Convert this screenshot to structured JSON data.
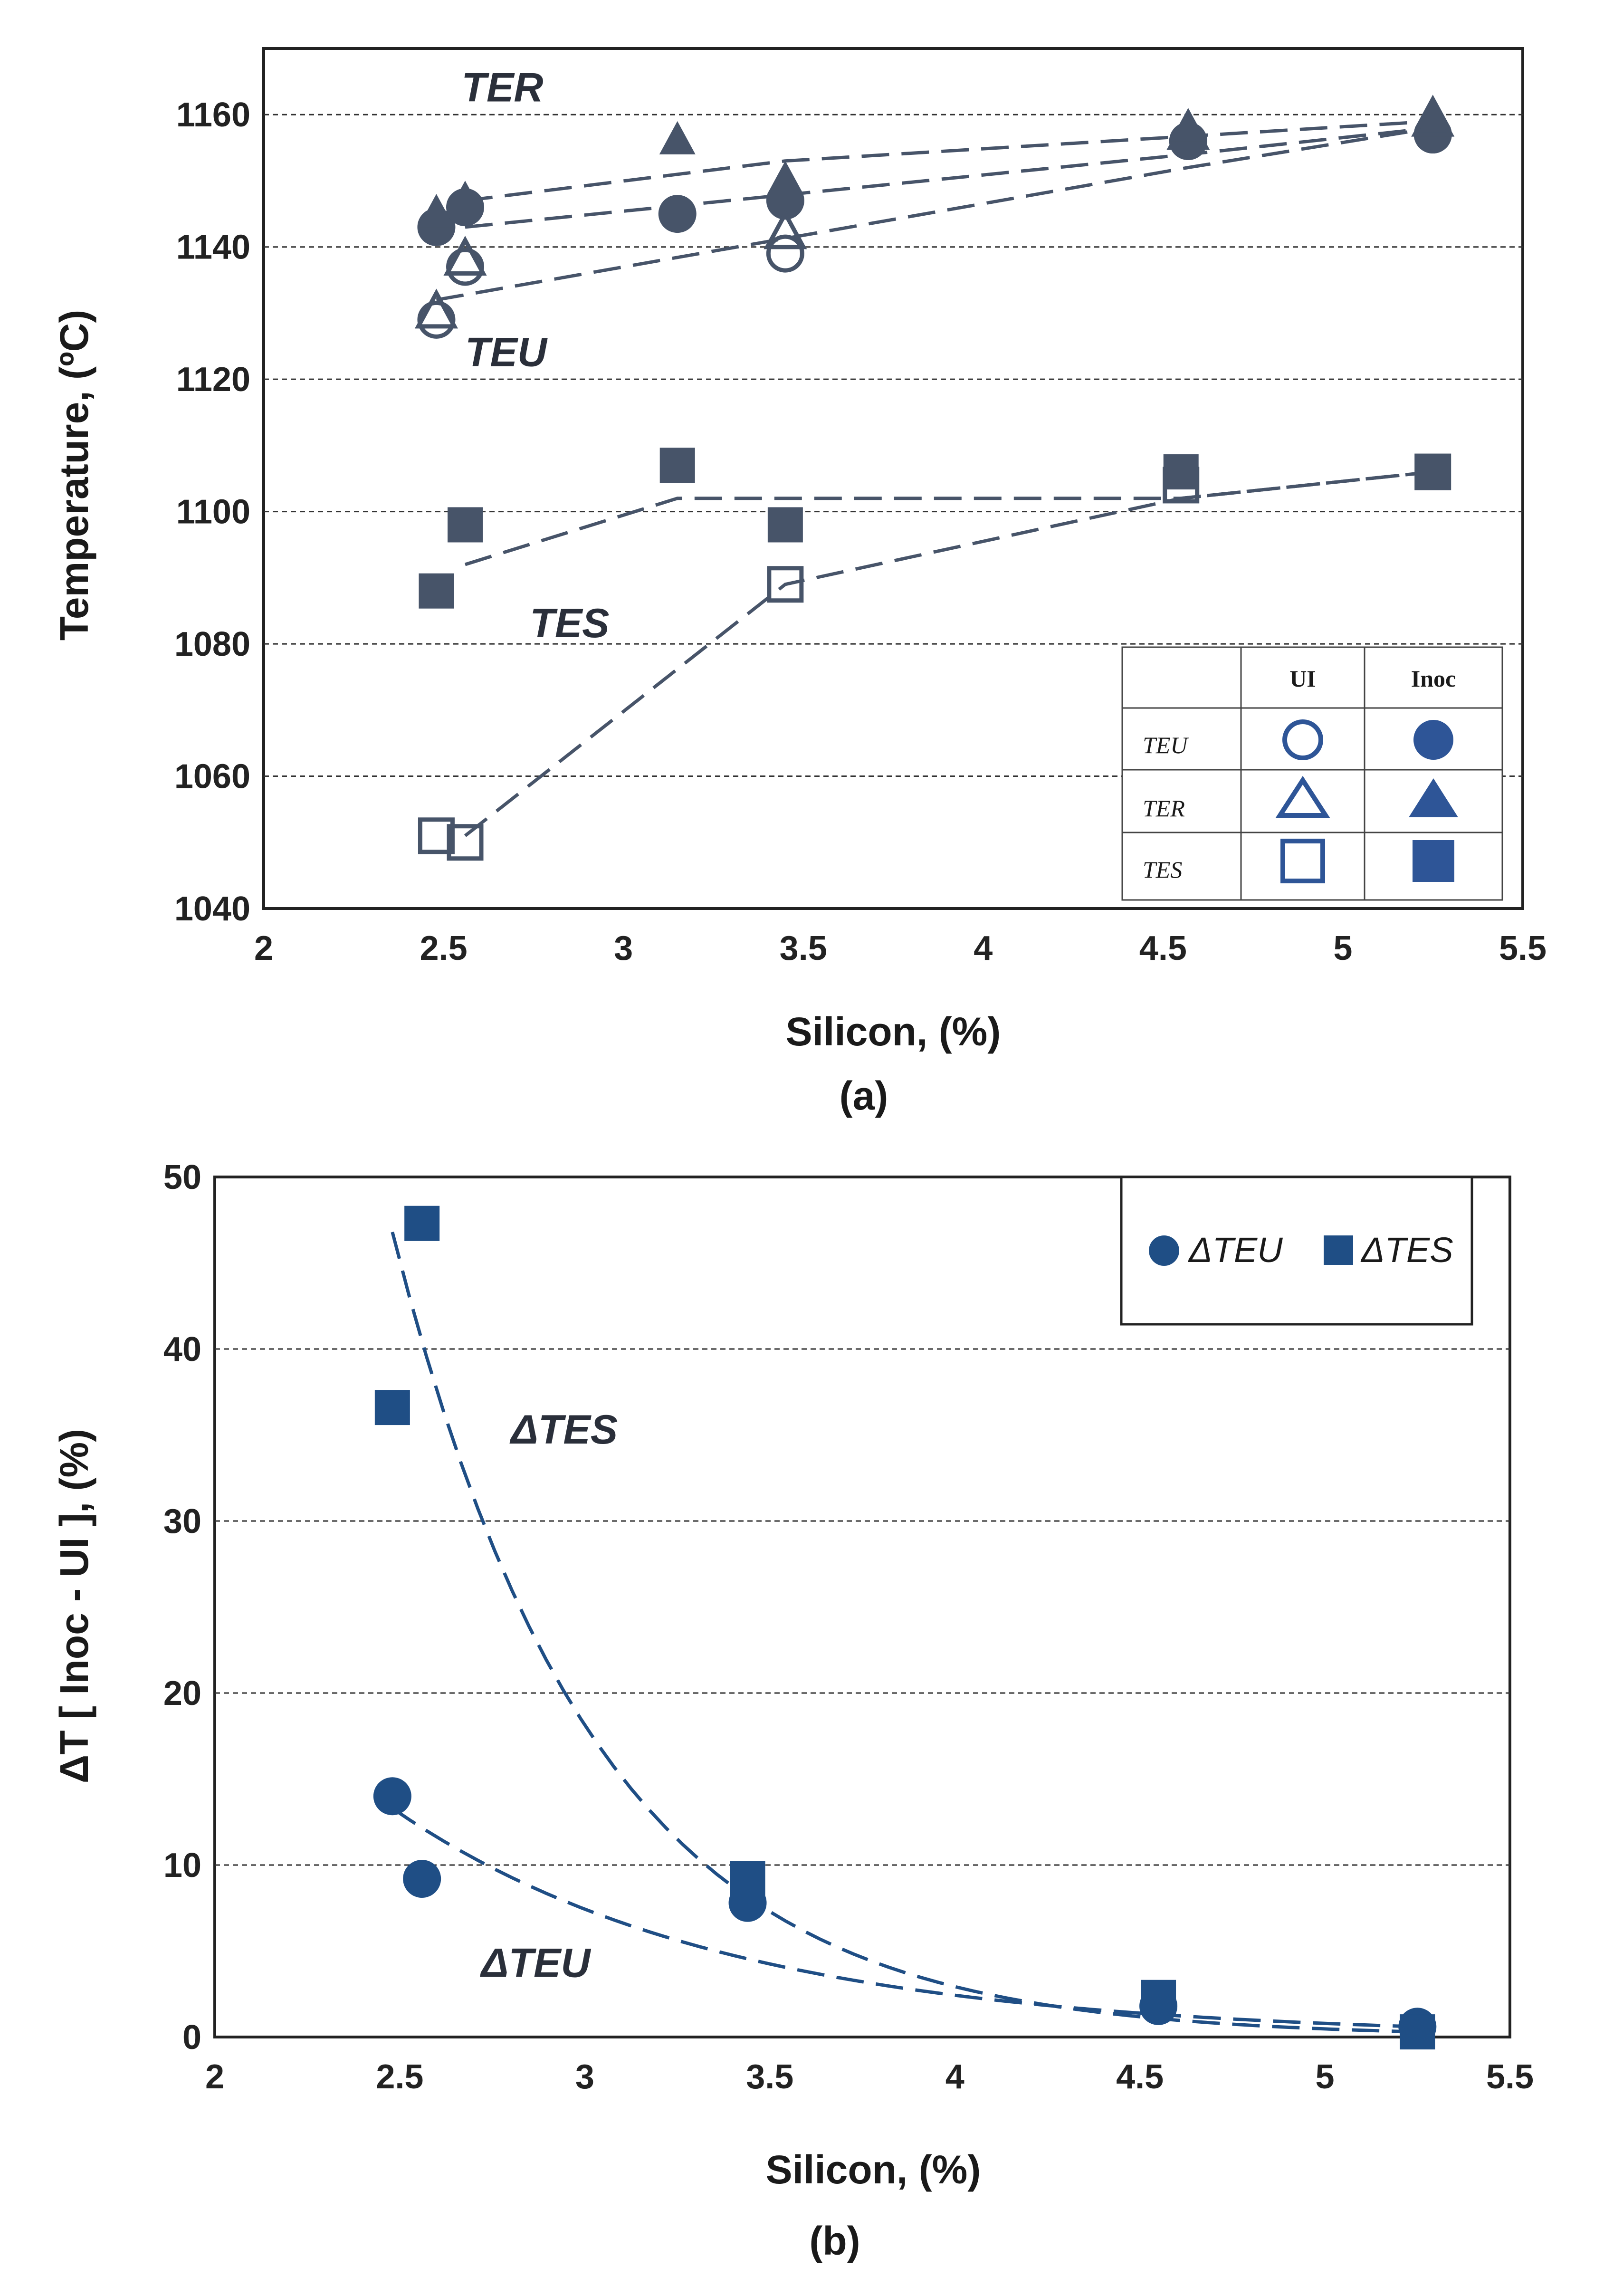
{
  "chart_data": [
    {
      "id": "a",
      "type": "scatter",
      "caption": "(a)",
      "xlabel": "Silicon, (%)",
      "ylabel": "Temperature, (ºC)",
      "xlim": [
        2,
        5.5
      ],
      "ylim": [
        1040,
        1170
      ],
      "x_ticks": [
        "2",
        "2.5",
        "3",
        "3.5",
        "4",
        "4.5",
        "5",
        "5.5"
      ],
      "y_ticks": [
        "1040",
        "1060",
        "1080",
        "1100",
        "1120",
        "1140",
        "1160"
      ],
      "grid": "horizontal dashed",
      "series": [
        {
          "name": "TEU UI",
          "marker": "circle-open",
          "x": [
            2.48,
            2.56,
            3.45,
            4.57,
            5.25
          ],
          "y": [
            1129,
            1137,
            1139,
            1156,
            1157
          ]
        },
        {
          "name": "TEU Inoc",
          "marker": "circle-filled",
          "x": [
            2.48,
            2.56,
            3.15,
            3.45,
            4.57,
            5.25
          ],
          "y": [
            1143,
            1146,
            1145,
            1147,
            1156,
            1157
          ]
        },
        {
          "name": "TER UI",
          "marker": "triangle-open",
          "x": [
            2.48,
            2.56,
            3.45,
            4.57,
            5.25
          ],
          "y": [
            1130,
            1138,
            1142,
            1157,
            1159
          ]
        },
        {
          "name": "TER Inoc",
          "marker": "triangle-filled",
          "x": [
            2.48,
            2.56,
            3.15,
            3.45,
            4.57,
            5.25
          ],
          "y": [
            1145,
            1147,
            1156,
            1150,
            1158,
            1160
          ]
        },
        {
          "name": "TES UI",
          "marker": "square-open",
          "x": [
            2.48,
            2.56,
            3.45,
            4.55,
            5.25
          ],
          "y": [
            1051,
            1050,
            1089,
            1104,
            1106
          ]
        },
        {
          "name": "TES Inoc",
          "marker": "square-filled",
          "x": [
            2.48,
            2.56,
            3.15,
            3.45,
            4.55,
            5.25
          ],
          "y": [
            1088,
            1098,
            1107,
            1098,
            1106,
            1106
          ]
        }
      ],
      "trend_lines": [
        {
          "name": "TER Inoc trend",
          "x": [
            2.56,
            3.45,
            5.25
          ],
          "y": [
            1147,
            1153,
            1159
          ]
        },
        {
          "name": "TEU Inoc trend",
          "x": [
            2.56,
            4.57,
            5.25
          ],
          "y": [
            1143,
            1154,
            1158
          ]
        },
        {
          "name": "TER UI trend",
          "x": [
            2.48,
            4.57,
            5.25
          ],
          "y": [
            1132,
            1152,
            1158
          ]
        },
        {
          "name": "TES Inoc trend",
          "x": [
            2.56,
            3.15,
            4.55,
            5.25
          ],
          "y": [
            1092,
            1102,
            1102,
            1106
          ]
        },
        {
          "name": "TES UI trend",
          "x": [
            2.56,
            3.45,
            4.55,
            5.25
          ],
          "y": [
            1051,
            1089,
            1102,
            1106
          ]
        }
      ],
      "annotations": [
        {
          "text": "TER",
          "x": 2.55,
          "y": 1162
        },
        {
          "text": "TEU",
          "x": 2.56,
          "y": 1122
        },
        {
          "text": "TES",
          "x": 2.74,
          "y": 1081
        }
      ],
      "legend_table": {
        "col_headers": [
          "",
          "UI",
          "Inoc"
        ],
        "rows": [
          {
            "label": "TEU",
            "ui_marker": "circle-open",
            "inoc_marker": "circle-filled"
          },
          {
            "label": "TER",
            "ui_marker": "triangle-open",
            "inoc_marker": "triangle-filled"
          },
          {
            "label": "TES",
            "ui_marker": "square-open",
            "inoc_marker": "square-filled"
          }
        ]
      }
    },
    {
      "id": "b",
      "type": "scatter",
      "caption": "(b)",
      "xlabel": "Silicon, (%)",
      "ylabel": "ΔT [ Inoc - UI ], (%)",
      "xlim": [
        2,
        5.5
      ],
      "ylim": [
        0,
        50
      ],
      "x_ticks": [
        "2",
        "2.5",
        "3",
        "3.5",
        "4",
        "4.5",
        "5",
        "5.5"
      ],
      "y_ticks": [
        "0",
        "10",
        "20",
        "30",
        "40",
        "50"
      ],
      "grid": "horizontal dashed",
      "series": [
        {
          "name": "ΔTEU",
          "marker": "circle-filled",
          "x": [
            2.48,
            2.56,
            3.44,
            4.55,
            5.25
          ],
          "y": [
            14,
            9.2,
            7.8,
            1.8,
            0.6
          ]
        },
        {
          "name": "ΔTES",
          "marker": "square-filled",
          "x": [
            2.48,
            2.56,
            3.44,
            4.55,
            5.25
          ],
          "y": [
            36.6,
            47.3,
            9.2,
            2.3,
            0.3
          ]
        }
      ],
      "trend_lines": [
        {
          "name": "ΔTES fit",
          "model": "exponential",
          "x_range": [
            2.48,
            5.25
          ],
          "y_at_start": 46.8,
          "y_at_end": 0.3
        },
        {
          "name": "ΔTEU fit",
          "model": "exponential",
          "x_range": [
            2.48,
            5.25
          ],
          "y_at_start": 13.3,
          "y_at_end": 0.6
        }
      ],
      "annotations": [
        {
          "text": "ΔTES",
          "x": 2.8,
          "y": 34.5
        },
        {
          "text": "ΔTEU",
          "x": 2.72,
          "y": 3.5
        }
      ],
      "legend": [
        {
          "label": "ΔTEU",
          "marker": "circle-filled"
        },
        {
          "label": "ΔTES",
          "marker": "square-filled"
        }
      ],
      "legend_position": "top-right"
    }
  ],
  "colors": {
    "marker_a": "#475469",
    "marker_b": "#1f4e85",
    "legend_a": "#2e5597",
    "axis": "#222222",
    "grid": "#333333"
  }
}
